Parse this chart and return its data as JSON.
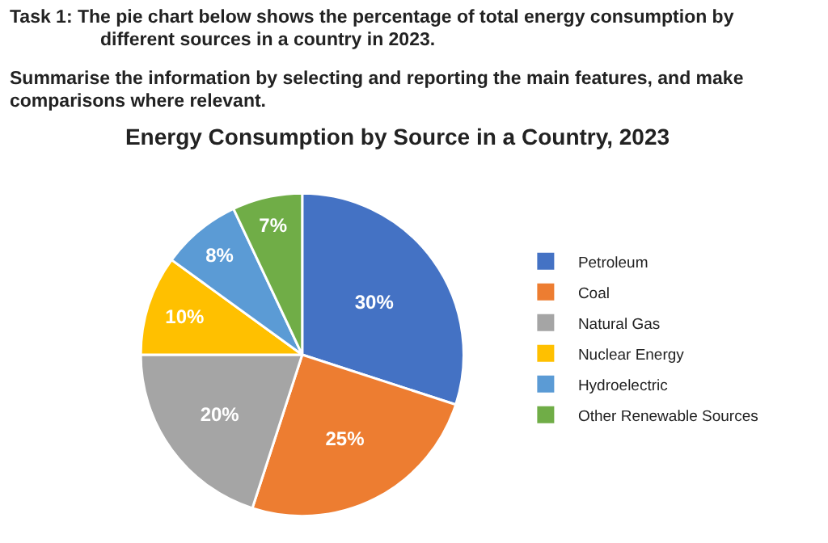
{
  "chart_data": {
    "type": "pie",
    "title": "Energy Consumption by Source in a Country, 2023",
    "annotations": [
      "Task 1:  The pie chart below shows the percentage of total energy consumption by different sources in a country in 2023.",
      "Summarise the information by selecting and reporting the main features, and make comparisons where relevant."
    ],
    "categories": [
      "Petroleum",
      "Coal",
      "Natural Gas",
      "Nuclear Energy",
      "Hydroelectric",
      "Other Renewable Sources"
    ],
    "values": [
      30,
      25,
      20,
      10,
      8,
      7
    ],
    "value_labels": [
      "30%",
      "25%",
      "20%",
      "10%",
      "8%",
      "7%"
    ],
    "colors": [
      "#4472c4",
      "#ed7d31",
      "#a5a5a5",
      "#ffc000",
      "#5b9bd5",
      "#70ad47"
    ],
    "legend": "right"
  }
}
